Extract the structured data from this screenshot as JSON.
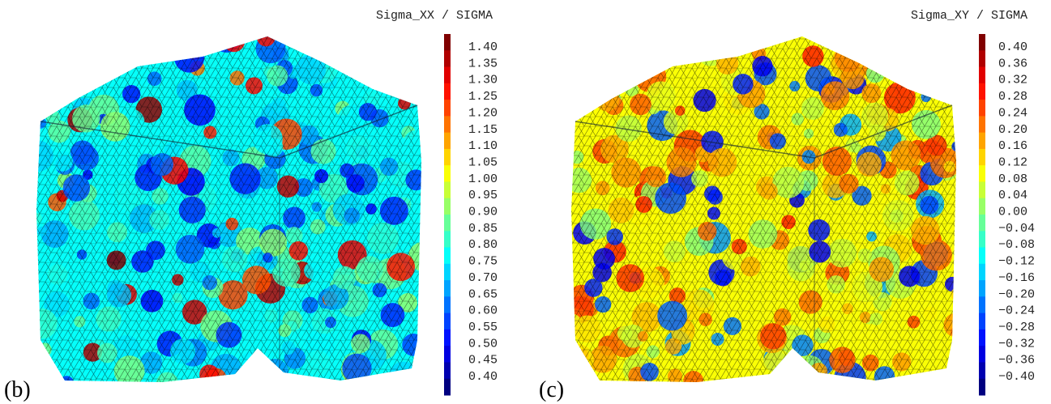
{
  "panels": [
    {
      "label": "(b)",
      "colorbar_title": "Sigma_XX / SIGMA",
      "ticks": [
        "1.40",
        "1.35",
        "1.30",
        "1.25",
        "1.20",
        "1.15",
        "1.10",
        "1.05",
        "1.00",
        "0.95",
        "0.90",
        "0.85",
        "0.80",
        "0.75",
        "0.70",
        "0.65",
        "0.60",
        "0.55",
        "0.50",
        "0.45",
        "0.40"
      ]
    },
    {
      "label": "(c)",
      "colorbar_title": "Sigma_XY / SIGMA",
      "ticks": [
        "0.40",
        "0.36",
        "0.32",
        "0.28",
        "0.24",
        "0.20",
        "0.16",
        "0.12",
        "0.08",
        "0.04",
        "0.00",
        "−0.04",
        "−0.08",
        "−0.12",
        "−0.16",
        "−0.20",
        "−0.24",
        "−0.28",
        "−0.32",
        "−0.36",
        "−0.40"
      ]
    }
  ]
}
